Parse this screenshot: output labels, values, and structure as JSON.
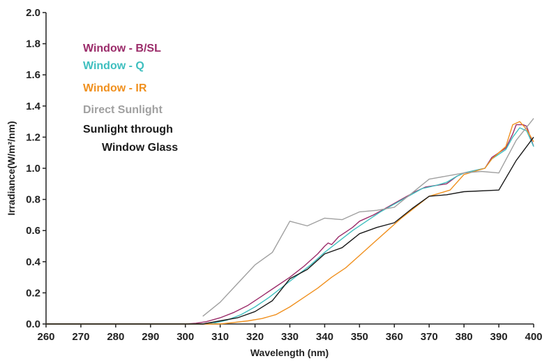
{
  "chart_data": {
    "type": "line",
    "xlabel": "Wavelength (nm)",
    "ylabel": "Irradiance(W/m²/nm)",
    "xlim": [
      260,
      400
    ],
    "ylim": [
      0,
      2.0
    ],
    "x_ticks": [
      "260",
      "270",
      "280",
      "290",
      "300",
      "310",
      "320",
      "330",
      "340",
      "350",
      "360",
      "370",
      "380",
      "390",
      "400"
    ],
    "y_ticks": [
      "0.0",
      "0.2",
      "0.4",
      "0.6",
      "0.8",
      "1.0",
      "1.2",
      "1.4",
      "1.6",
      "1.8",
      "2.0"
    ],
    "grid": false,
    "legend_position": "top-left",
    "series": [
      {
        "name": "Window - B/SL",
        "color": "#9b2c6a",
        "points": [
          [
            260,
            0
          ],
          [
            300,
            0
          ],
          [
            303,
            0.005
          ],
          [
            306,
            0.015
          ],
          [
            310,
            0.04
          ],
          [
            314,
            0.075
          ],
          [
            318,
            0.12
          ],
          [
            322,
            0.18
          ],
          [
            326,
            0.24
          ],
          [
            330,
            0.3
          ],
          [
            334,
            0.37
          ],
          [
            338,
            0.45
          ],
          [
            340,
            0.5
          ],
          [
            341,
            0.52
          ],
          [
            342,
            0.51
          ],
          [
            344,
            0.56
          ],
          [
            346,
            0.59
          ],
          [
            348,
            0.62
          ],
          [
            350,
            0.66
          ],
          [
            354,
            0.7
          ],
          [
            358,
            0.75
          ],
          [
            362,
            0.8
          ],
          [
            366,
            0.85
          ],
          [
            369,
            0.88
          ],
          [
            372,
            0.89
          ],
          [
            375,
            0.9
          ],
          [
            378,
            0.95
          ],
          [
            380,
            0.97
          ],
          [
            384,
            0.99
          ],
          [
            386,
            1.0
          ],
          [
            388,
            1.07
          ],
          [
            390,
            1.1
          ],
          [
            392,
            1.13
          ],
          [
            394,
            1.22
          ],
          [
            395,
            1.28
          ],
          [
            397,
            1.28
          ],
          [
            398,
            1.27
          ],
          [
            400,
            1.14
          ]
        ]
      },
      {
        "name": "Window - Q",
        "color": "#3fbfbf",
        "points": [
          [
            260,
            0
          ],
          [
            305,
            0
          ],
          [
            308,
            0.005
          ],
          [
            312,
            0.025
          ],
          [
            316,
            0.06
          ],
          [
            320,
            0.11
          ],
          [
            324,
            0.17
          ],
          [
            328,
            0.24
          ],
          [
            332,
            0.31
          ],
          [
            336,
            0.38
          ],
          [
            340,
            0.46
          ],
          [
            344,
            0.53
          ],
          [
            348,
            0.6
          ],
          [
            352,
            0.66
          ],
          [
            356,
            0.72
          ],
          [
            360,
            0.77
          ],
          [
            364,
            0.82
          ],
          [
            368,
            0.87
          ],
          [
            370,
            0.88
          ],
          [
            372,
            0.89
          ],
          [
            375,
            0.91
          ],
          [
            378,
            0.95
          ],
          [
            380,
            0.97
          ],
          [
            384,
            0.99
          ],
          [
            386,
            1.0
          ],
          [
            388,
            1.06
          ],
          [
            390,
            1.09
          ],
          [
            392,
            1.12
          ],
          [
            394,
            1.2
          ],
          [
            396,
            1.26
          ],
          [
            398,
            1.24
          ],
          [
            400,
            1.14
          ]
        ]
      },
      {
        "name": "Window - IR",
        "color": "#f0901e",
        "points": [
          [
            260,
            0
          ],
          [
            310,
            0
          ],
          [
            314,
            0.01
          ],
          [
            318,
            0.02
          ],
          [
            322,
            0.035
          ],
          [
            326,
            0.06
          ],
          [
            330,
            0.11
          ],
          [
            334,
            0.17
          ],
          [
            338,
            0.23
          ],
          [
            342,
            0.3
          ],
          [
            346,
            0.36
          ],
          [
            350,
            0.44
          ],
          [
            354,
            0.52
          ],
          [
            358,
            0.6
          ],
          [
            362,
            0.68
          ],
          [
            366,
            0.75
          ],
          [
            370,
            0.82
          ],
          [
            373,
            0.84
          ],
          [
            376,
            0.86
          ],
          [
            380,
            0.96
          ],
          [
            383,
            0.98
          ],
          [
            386,
            1.0
          ],
          [
            388,
            1.06
          ],
          [
            390,
            1.1
          ],
          [
            392,
            1.14
          ],
          [
            394,
            1.28
          ],
          [
            396,
            1.3
          ],
          [
            398,
            1.25
          ],
          [
            400,
            1.17
          ]
        ]
      },
      {
        "name": "Direct Sunlight",
        "color": "#a0a0a0",
        "points": [
          [
            305,
            0.05
          ],
          [
            310,
            0.14
          ],
          [
            315,
            0.26
          ],
          [
            320,
            0.38
          ],
          [
            325,
            0.46
          ],
          [
            330,
            0.66
          ],
          [
            335,
            0.63
          ],
          [
            340,
            0.68
          ],
          [
            345,
            0.67
          ],
          [
            350,
            0.72
          ],
          [
            355,
            0.73
          ],
          [
            360,
            0.75
          ],
          [
            365,
            0.84
          ],
          [
            370,
            0.93
          ],
          [
            380,
            0.97
          ],
          [
            385,
            0.98
          ],
          [
            390,
            0.97
          ],
          [
            395,
            1.18
          ],
          [
            400,
            1.32
          ]
        ]
      },
      {
        "name": "Sunlight through Window Glass",
        "color": "#1a1a1a",
        "points": [
          [
            260,
            0
          ],
          [
            305,
            0
          ],
          [
            310,
            0.02
          ],
          [
            315,
            0.04
          ],
          [
            320,
            0.08
          ],
          [
            325,
            0.15
          ],
          [
            330,
            0.29
          ],
          [
            335,
            0.35
          ],
          [
            340,
            0.45
          ],
          [
            345,
            0.49
          ],
          [
            350,
            0.58
          ],
          [
            355,
            0.62
          ],
          [
            360,
            0.65
          ],
          [
            365,
            0.74
          ],
          [
            370,
            0.82
          ],
          [
            375,
            0.83
          ],
          [
            380,
            0.85
          ],
          [
            390,
            0.86
          ],
          [
            395,
            1.05
          ],
          [
            400,
            1.2
          ]
        ]
      }
    ]
  },
  "legend_lines": [
    {
      "text": "Window - B/SL",
      "series": 0
    },
    {
      "text": "Window - Q",
      "series": 1
    },
    {
      "text": "Window - IR",
      "series": 2
    },
    {
      "text": "Direct Sunlight",
      "series": 3
    },
    {
      "text": "Sunlight through",
      "series": 4
    },
    {
      "text": "Window Glass",
      "series": 4
    }
  ]
}
